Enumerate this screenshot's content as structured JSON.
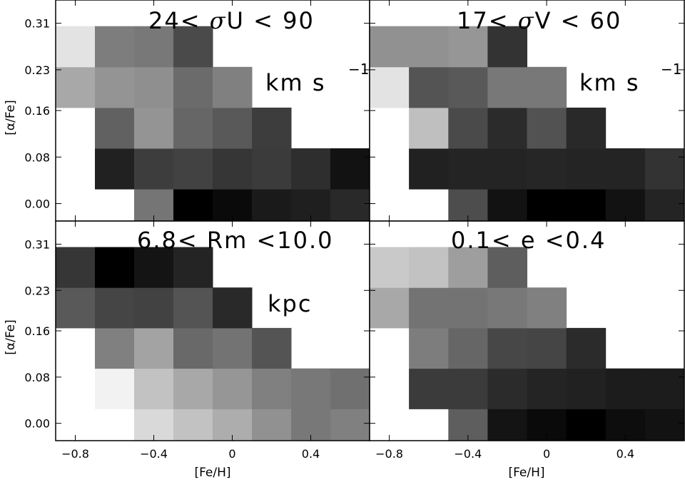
{
  "chart_data": [
    {
      "type": "heatmap",
      "title": "24< σU < 90",
      "title_parts": [
        "24< ",
        "σ",
        "U < 90"
      ],
      "unit": "km s",
      "unit_sup": "−1",
      "xlabel": "",
      "ylabel": "[α/Fe]",
      "x_ticks": [
        "−0.8",
        "−0.4",
        "0",
        "0.4"
      ],
      "y_ticks": [
        "0.00",
        "0.08",
        "0.16",
        "0.23",
        "0.31"
      ],
      "x_bins": [
        -0.9,
        -0.7,
        -0.5,
        -0.3,
        -0.1,
        0.1,
        0.3,
        0.5,
        0.7
      ],
      "y_bins": [
        0.0,
        0.04,
        0.12,
        0.2,
        0.27
      ],
      "gray_cells": [
        [
          null,
          null,
          0.46,
          0.0,
          0.04,
          0.1,
          0.12,
          0.16
        ],
        [
          null,
          0.13,
          0.24,
          0.26,
          0.21,
          0.23,
          0.18,
          0.07
        ],
        [
          null,
          0.38,
          0.58,
          0.4,
          0.35,
          0.24,
          null,
          null
        ],
        [
          0.66,
          0.58,
          0.56,
          0.42,
          0.5,
          null,
          null,
          null
        ],
        [
          0.89,
          0.49,
          0.47,
          0.29,
          null,
          null,
          null,
          null
        ]
      ]
    },
    {
      "type": "heatmap",
      "title": "17< σV < 60",
      "title_parts": [
        "17< ",
        "σ",
        "V < 60"
      ],
      "unit": "km s",
      "unit_sup": "−1",
      "xlabel": "",
      "ylabel": "",
      "x_ticks": [],
      "y_ticks": [],
      "x_bins": [
        -0.9,
        -0.7,
        -0.5,
        -0.3,
        -0.1,
        0.1,
        0.3,
        0.5,
        0.7
      ],
      "y_bins": [
        0.0,
        0.04,
        0.12,
        0.2,
        0.27
      ],
      "gray_cells": [
        [
          null,
          null,
          0.3,
          0.07,
          0.0,
          0.0,
          0.07,
          0.14
        ],
        [
          null,
          0.13,
          0.14,
          0.14,
          0.15,
          0.14,
          0.14,
          0.2
        ],
        [
          null,
          0.75,
          0.29,
          0.17,
          0.32,
          0.16,
          null,
          null
        ],
        [
          0.89,
          0.33,
          0.35,
          0.47,
          0.47,
          null,
          null,
          null
        ],
        [
          0.57,
          0.57,
          0.59,
          0.2,
          null,
          null,
          null,
          null
        ]
      ]
    },
    {
      "type": "heatmap",
      "title": "6.8< Rm <10.0",
      "unit": "kpc",
      "xlabel": "[Fe/H]",
      "ylabel": "[α/Fe]",
      "x_ticks": [
        "−0.8",
        "−0.4",
        "0",
        "0.4"
      ],
      "y_ticks": [
        "0.00",
        "0.08",
        "0.16",
        "0.23",
        "0.31"
      ],
      "x_bins": [
        -0.9,
        -0.7,
        -0.5,
        -0.3,
        -0.1,
        0.1,
        0.3,
        0.5,
        0.7
      ],
      "y_bins": [
        0.0,
        0.04,
        0.12,
        0.2,
        0.27
      ],
      "gray_cells": [
        [
          null,
          null,
          0.85,
          0.76,
          0.68,
          0.57,
          0.47,
          0.5
        ],
        [
          null,
          0.95,
          0.76,
          0.66,
          0.59,
          0.5,
          0.47,
          0.44
        ],
        [
          null,
          0.5,
          0.64,
          0.41,
          0.45,
          0.33,
          null,
          null
        ],
        [
          0.35,
          0.27,
          0.26,
          0.33,
          0.16,
          null,
          null,
          null
        ],
        [
          0.21,
          0.0,
          0.08,
          0.14,
          null,
          null,
          null,
          null
        ]
      ]
    },
    {
      "type": "heatmap",
      "title": "0.1< e <0.4",
      "unit": "",
      "xlabel": "[Fe/H]",
      "ylabel": "",
      "x_ticks": [
        "−0.8",
        "−0.4",
        "0",
        "0.4"
      ],
      "y_ticks": [],
      "x_bins": [
        -0.9,
        -0.7,
        -0.5,
        -0.3,
        -0.1,
        0.1,
        0.3,
        0.5,
        0.7
      ],
      "y_bins": [
        0.0,
        0.04,
        0.12,
        0.2,
        0.27
      ],
      "gray_cells": [
        [
          null,
          null,
          0.37,
          0.08,
          0.04,
          0.0,
          0.05,
          0.07
        ],
        [
          null,
          0.23,
          0.23,
          0.17,
          0.14,
          0.13,
          0.11,
          0.11
        ],
        [
          null,
          0.49,
          0.4,
          0.28,
          0.27,
          0.17,
          null,
          null
        ],
        [
          0.66,
          0.45,
          0.45,
          0.47,
          0.5,
          null,
          null,
          null
        ],
        [
          0.79,
          0.76,
          0.62,
          0.37,
          null,
          null,
          null,
          null
        ]
      ]
    }
  ]
}
